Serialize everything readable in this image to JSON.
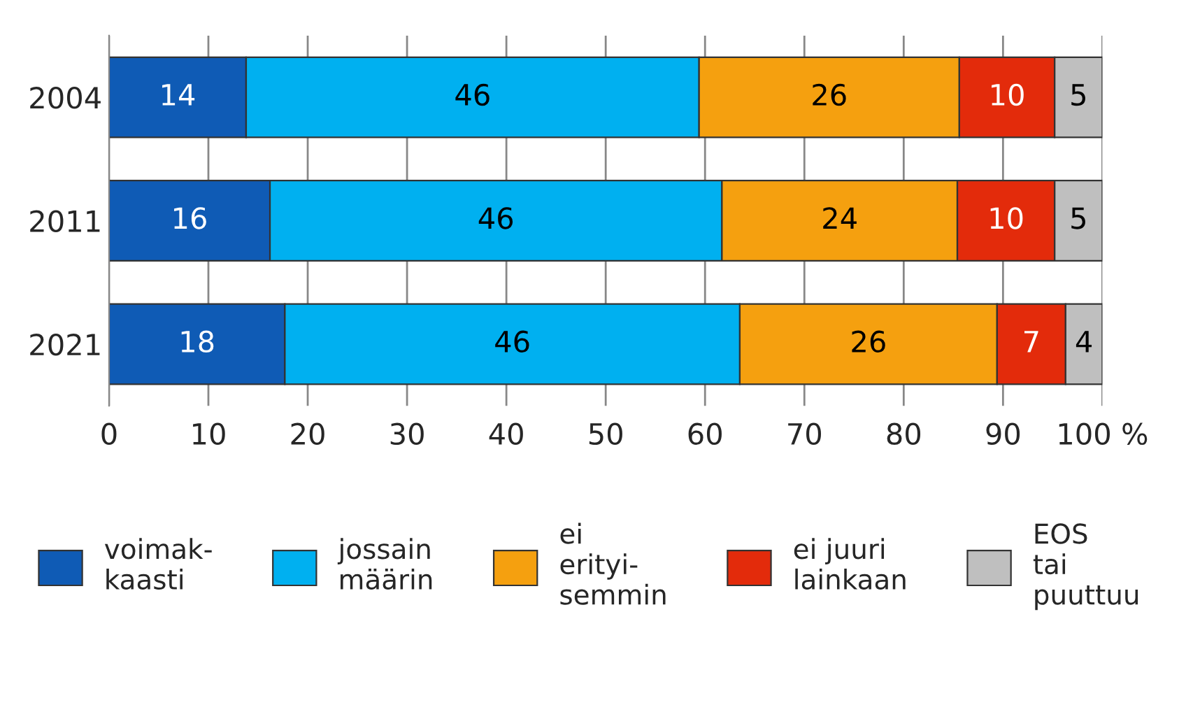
{
  "chart_data": {
    "type": "bar",
    "orientation": "horizontal",
    "stacked": true,
    "categories": [
      "2004",
      "2011",
      "2021"
    ],
    "series": [
      {
        "name": "voimak-\nkaasti",
        "color": "#0f5bb5",
        "values": [
          13.8,
          16.2,
          17.7
        ],
        "value_labels": [
          "14",
          "16",
          "18"
        ]
      },
      {
        "name": "jossain\nmäärin",
        "color": "#00b0f0",
        "values": [
          45.6,
          45.5,
          45.8
        ],
        "value_labels": [
          "46",
          "46",
          "46"
        ]
      },
      {
        "name": "ei\nerityi-\nsemmin",
        "color": "#f5a00f",
        "values": [
          26.2,
          23.7,
          25.9
        ],
        "value_labels": [
          "26",
          "24",
          "26"
        ]
      },
      {
        "name": "ei juuri\nlainkaan",
        "color": "#e32b0b",
        "values": [
          9.6,
          9.8,
          6.9
        ],
        "value_labels": [
          "10",
          "10",
          "7"
        ]
      },
      {
        "name": "EOS\ntai\npuuttuu",
        "color": "#bfbfbf",
        "values": [
          4.8,
          4.8,
          3.7
        ],
        "value_labels": [
          "5",
          "5",
          "4"
        ]
      }
    ],
    "xlim": [
      0,
      100
    ],
    "xticks": [
      0,
      10,
      20,
      30,
      40,
      50,
      60,
      70,
      80,
      90,
      {
        "value": 100,
        "label": "100 %"
      }
    ],
    "grid": "x",
    "legend": "bottom"
  }
}
